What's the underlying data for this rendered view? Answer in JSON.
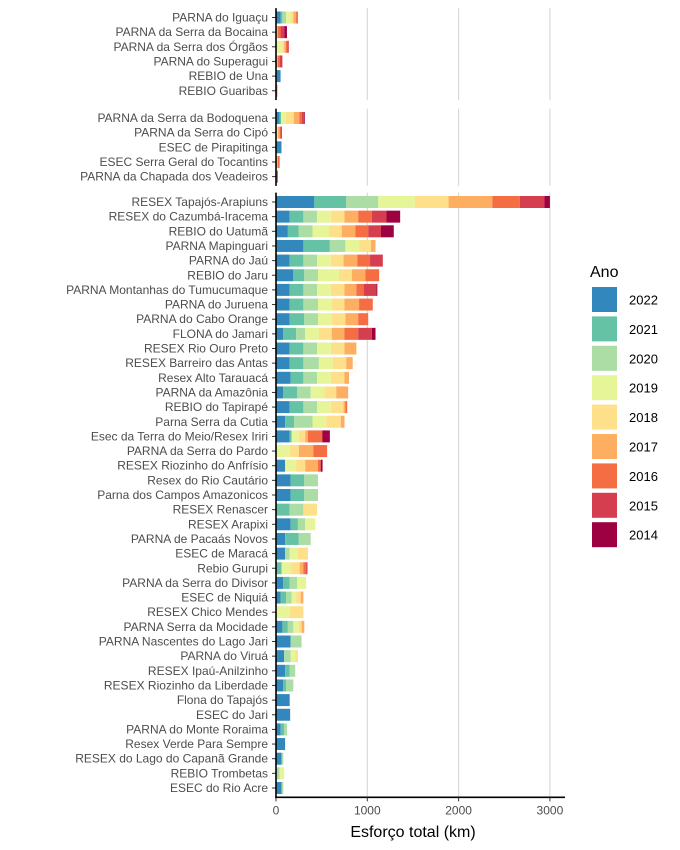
{
  "chart_data": {
    "type": "bar",
    "orientation": "horizontal",
    "stacked": true,
    "xlabel": "Esforço total (km)",
    "ylabel": "",
    "xlim": [
      0,
      3050
    ],
    "x_ticks": [
      0,
      1000,
      2000,
      3000
    ],
    "grid": true,
    "legend_placement": "right",
    "legend": {
      "title": "Ano",
      "entries": [
        "2022",
        "2021",
        "2020",
        "2019",
        "2018",
        "2017",
        "2016",
        "2015",
        "2014"
      ]
    },
    "colors": {
      "2022": "#3288bd",
      "2021": "#66c2a5",
      "2020": "#abdda4",
      "2019": "#e6f598",
      "2018": "#fee08b",
      "2017": "#fdae61",
      "2016": "#f46d43",
      "2015": "#d53e4f",
      "2014": "#9e0142"
    },
    "series_order": [
      "2022",
      "2021",
      "2020",
      "2019",
      "2018",
      "2017",
      "2016",
      "2015",
      "2014"
    ],
    "panels": [
      {
        "categories": [
          {
            "name": "PARNA do Iguaçu",
            "values": {
              "2022": 50,
              "2021": 20,
              "2020": 40,
              "2019": 50,
              "2018": 30,
              "2017": 30,
              "2016": 20
            }
          },
          {
            "name": "PARNA da Serra da Bocaina",
            "values": {
              "2017": 20,
              "2016": 30,
              "2015": 40,
              "2014": 30
            }
          },
          {
            "name": "PARNA da Serra dos Órgãos",
            "values": {
              "2019": 70,
              "2018": 20,
              "2017": 20,
              "2016": 15,
              "2015": 15
            }
          },
          {
            "name": "PARNA do Superagui",
            "values": {
              "2017": 20,
              "2016": 20,
              "2015": 30
            }
          },
          {
            "name": "REBIO de Una",
            "values": {
              "2022": 50
            }
          },
          {
            "name": "REBIO Guaribas",
            "values": {
              "2016": 15
            }
          }
        ]
      },
      {
        "categories": [
          {
            "name": "PARNA da Serra da Bodoquena",
            "values": {
              "2022": 40,
              "2021": 15,
              "2019": 50,
              "2018": 90,
              "2017": 60,
              "2016": 30,
              "2015": 20,
              "2014": 10
            }
          },
          {
            "name": "PARNA da Serra do Cipó",
            "values": {
              "2019": 20,
              "2017": 20,
              "2016": 10,
              "2015": 15
            }
          },
          {
            "name": "ESEC de Pirapitinga",
            "values": {
              "2022": 60
            }
          },
          {
            "name": "ESEC Serra Geral do Tocantins",
            "values": {
              "2017": 20,
              "2016": 20
            }
          },
          {
            "name": "PARNA da Chapada dos Veadeiros",
            "values": {
              "2016": 10,
              "2015": 10
            }
          }
        ]
      },
      {
        "categories": [
          {
            "name": "RESEX Tapajós-Arapiuns",
            "values": {
              "2022": 420,
              "2021": 350,
              "2020": 350,
              "2019": 400,
              "2018": 370,
              "2017": 480,
              "2016": 300,
              "2015": 270,
              "2014": 60
            }
          },
          {
            "name": "RESEX do Cazumbá-Iracema",
            "values": {
              "2022": 150,
              "2021": 150,
              "2020": 150,
              "2019": 150,
              "2018": 150,
              "2017": 150,
              "2016": 150,
              "2015": 160,
              "2014": 150
            }
          },
          {
            "name": "REBIO do Uatumã",
            "values": {
              "2022": 130,
              "2021": 120,
              "2020": 150,
              "2019": 180,
              "2018": 140,
              "2017": 150,
              "2016": 140,
              "2015": 140,
              "2014": 140
            }
          },
          {
            "name": "PARNA Mapinguari",
            "values": {
              "2022": 300,
              "2021": 290,
              "2020": 170,
              "2019": 150,
              "2018": 130,
              "2017": 50
            }
          },
          {
            "name": "PARNA do Jaú",
            "values": {
              "2022": 150,
              "2021": 150,
              "2020": 150,
              "2019": 150,
              "2018": 140,
              "2017": 150,
              "2016": 140,
              "2015": 140
            }
          },
          {
            "name": "REBIO do Jaru",
            "values": {
              "2022": 190,
              "2021": 120,
              "2020": 150,
              "2019": 230,
              "2018": 140,
              "2017": 150,
              "2016": 150
            }
          },
          {
            "name": "PARNA Montanhas do Tumucumaque",
            "values": {
              "2022": 150,
              "2021": 150,
              "2020": 150,
              "2019": 150,
              "2018": 150,
              "2017": 130,
              "2016": 80,
              "2015": 140,
              "2014": 10
            }
          },
          {
            "name": "PARNA do Juruena",
            "values": {
              "2022": 150,
              "2021": 150,
              "2020": 160,
              "2019": 150,
              "2018": 140,
              "2017": 160,
              "2016": 150
            }
          },
          {
            "name": "PARNA do Cabo Orange",
            "values": {
              "2022": 150,
              "2021": 160,
              "2020": 150,
              "2019": 150,
              "2018": 150,
              "2017": 140,
              "2016": 110
            }
          },
          {
            "name": "FLONA do Jamari",
            "values": {
              "2022": 80,
              "2021": 140,
              "2020": 100,
              "2019": 150,
              "2018": 140,
              "2017": 140,
              "2016": 150,
              "2015": 150,
              "2014": 40
            }
          },
          {
            "name": "RESEX Rio Ouro Preto",
            "values": {
              "2022": 150,
              "2021": 150,
              "2020": 150,
              "2019": 150,
              "2018": 150,
              "2017": 130
            }
          },
          {
            "name": "RESEX Barreiro das Antas",
            "values": {
              "2022": 150,
              "2021": 150,
              "2020": 170,
              "2019": 150,
              "2018": 150,
              "2017": 70
            }
          },
          {
            "name": "Resex Alto Tarauacá",
            "values": {
              "2022": 160,
              "2021": 140,
              "2020": 150,
              "2019": 150,
              "2018": 150,
              "2017": 50
            }
          },
          {
            "name": "PARNA da Amazônia",
            "values": {
              "2022": 80,
              "2021": 150,
              "2020": 150,
              "2019": 150,
              "2018": 130,
              "2017": 130
            }
          },
          {
            "name": "REBIO do Tapirapé",
            "values": {
              "2022": 150,
              "2021": 150,
              "2020": 150,
              "2019": 150,
              "2018": 140,
              "2017": 20,
              "2016": 20
            }
          },
          {
            "name": "Parna Serra da Cutia",
            "values": {
              "2022": 100,
              "2021": 100,
              "2020": 200,
              "2019": 150,
              "2018": 160,
              "2017": 40
            }
          },
          {
            "name": "Esec da Terra do Meio/Resex Iriri",
            "values": {
              "2022": 150,
              "2021": 20,
              "2019": 80,
              "2018": 70,
              "2017": 30,
              "2016": 150,
              "2015": 10,
              "2014": 80
            }
          },
          {
            "name": "PARNA da Serra do Pardo",
            "values": {
              "2019": 150,
              "2018": 100,
              "2017": 160,
              "2016": 150
            }
          },
          {
            "name": "RESEX Riozinho do Anfrísio",
            "values": {
              "2022": 100,
              "2019": 120,
              "2018": 100,
              "2017": 140,
              "2016": 30,
              "2014": 20
            }
          },
          {
            "name": "Resex do Rio Cautário",
            "values": {
              "2022": 160,
              "2021": 150,
              "2020": 150
            }
          },
          {
            "name": "Parna dos Campos Amazonicos",
            "values": {
              "2022": 160,
              "2021": 150,
              "2020": 150
            }
          },
          {
            "name": "RESEX Renascer",
            "values": {
              "2021": 150,
              "2020": 150,
              "2018": 150
            }
          },
          {
            "name": "RESEX Arapixi",
            "values": {
              "2022": 160,
              "2021": 80,
              "2020": 80,
              "2019": 110
            }
          },
          {
            "name": "PARNA de Pacaás Novos",
            "values": {
              "2022": 100,
              "2021": 150,
              "2020": 130
            }
          },
          {
            "name": "ESEC de Maracá",
            "values": {
              "2022": 100,
              "2020": 50,
              "2019": 90,
              "2018": 110
            }
          },
          {
            "name": "Rebio Gurupi",
            "values": {
              "2021": 60,
              "2019": 100,
              "2018": 100,
              "2017": 40,
              "2016": 30,
              "2015": 15
            }
          },
          {
            "name": "PARNA da Serra do Divisor",
            "values": {
              "2022": 80,
              "2021": 70,
              "2020": 80,
              "2019": 100
            }
          },
          {
            "name": "ESEC de Niquiá",
            "values": {
              "2022": 50,
              "2021": 60,
              "2020": 60,
              "2019": 50,
              "2018": 50,
              "2017": 30
            }
          },
          {
            "name": "RESEX Chico Mendes",
            "values": {
              "2019": 150,
              "2018": 150
            }
          },
          {
            "name": "PARNA Serra da Mocidade",
            "values": {
              "2022": 70,
              "2021": 60,
              "2020": 60,
              "2019": 60,
              "2018": 30,
              "2017": 30
            }
          },
          {
            "name": "PARNA Nascentes do Lago Jari",
            "values": {
              "2022": 160,
              "2020": 120
            }
          },
          {
            "name": "PARNA do Viruá",
            "values": {
              "2022": 90,
              "2020": 70,
              "2019": 50,
              "2018": 30
            }
          },
          {
            "name": "RESEX Ipaú-Anilzinho",
            "values": {
              "2022": 100,
              "2021": 50,
              "2020": 60
            }
          },
          {
            "name": "RESEX Riozinho da Liberdade",
            "values": {
              "2022": 80,
              "2021": 30,
              "2020": 80
            }
          },
          {
            "name": "Flona do Tapajós",
            "values": {
              "2022": 150
            }
          },
          {
            "name": "ESEC do Jari",
            "values": {
              "2022": 155
            }
          },
          {
            "name": "PARNA do Monte Roraima",
            "values": {
              "2022": 50,
              "2021": 40,
              "2020": 30
            }
          },
          {
            "name": "Resex Verde Para Sempre",
            "values": {
              "2022": 100
            }
          },
          {
            "name": "RESEX do Lago do Capanã Grande",
            "values": {
              "2022": 60,
              "2020": 20
            }
          },
          {
            "name": "REBIO Trombetas",
            "values": {
              "2020": 40,
              "2019": 50
            }
          },
          {
            "name": "ESEC do Rio Acre",
            "values": {
              "2022": 60,
              "2020": 20
            }
          }
        ]
      }
    ]
  }
}
